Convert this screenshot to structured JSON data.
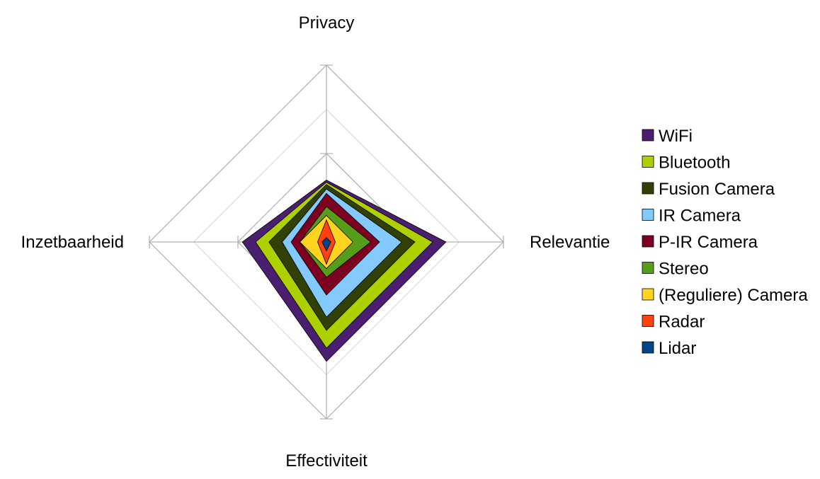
{
  "chart_data": {
    "type": "radar",
    "title": "",
    "axes": [
      "Privacy",
      "Relevantie",
      "Effectiviteit",
      "Inzetbaarheid"
    ],
    "range": [
      0,
      4
    ],
    "grid": true,
    "legend_position": "right",
    "series": [
      {
        "name": "WiFi",
        "color": "#4b1f6f",
        "values": [
          1.4,
          2.7,
          2.7,
          1.9
        ]
      },
      {
        "name": "Bluetooth",
        "color": "#aecf00",
        "values": [
          1.35,
          2.4,
          2.4,
          1.6
        ]
      },
      {
        "name": "Fusion Camera",
        "color": "#314004",
        "values": [
          1.3,
          2.0,
          2.0,
          1.3
        ]
      },
      {
        "name": "IR Camera",
        "color": "#83caff",
        "values": [
          1.2,
          1.7,
          1.7,
          1.0
        ]
      },
      {
        "name": "P-IR Camera",
        "color": "#7e0021",
        "values": [
          1.1,
          1.2,
          1.2,
          0.8
        ]
      },
      {
        "name": "Stereo",
        "color": "#579d1c",
        "values": [
          0.8,
          1.0,
          0.8,
          0.6
        ]
      },
      {
        "name": "(Reguliere) Camera",
        "color": "#ffd320",
        "values": [
          0.6,
          0.6,
          0.6,
          0.6
        ]
      },
      {
        "name": "Radar",
        "color": "#ff420e",
        "values": [
          0.5,
          0.2,
          0.5,
          0.2
        ]
      },
      {
        "name": "Lidar",
        "color": "#004586",
        "values": [
          0.1,
          0.1,
          0.2,
          0.1
        ]
      }
    ]
  }
}
